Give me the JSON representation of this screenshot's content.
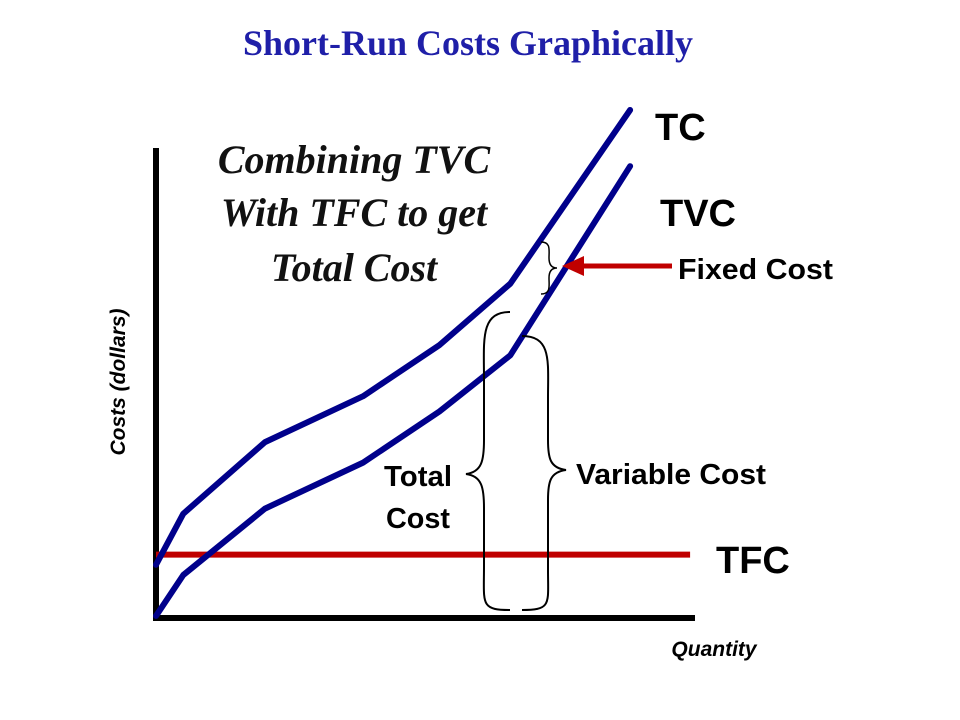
{
  "chart_data": {
    "type": "line",
    "title": "Short-Run Costs Graphically",
    "subtitle_lines": [
      "Combining TVC",
      "With TFC to get",
      "Total Cost"
    ],
    "xlabel": "Quantity",
    "ylabel": "Costs (dollars)",
    "series": [
      {
        "name": "TC",
        "color": "#00008b",
        "points": [
          [
            0,
            1.1
          ],
          [
            0.5,
            2.1
          ],
          [
            2.0,
            3.5
          ],
          [
            3.8,
            4.4
          ],
          [
            5.2,
            5.4
          ],
          [
            6.5,
            6.6
          ],
          [
            8.7,
            10.0
          ]
        ]
      },
      {
        "name": "TVC",
        "color": "#00008b",
        "points": [
          [
            0,
            0.1
          ],
          [
            0.5,
            0.9
          ],
          [
            2.0,
            2.2
          ],
          [
            3.8,
            3.1
          ],
          [
            5.2,
            4.1
          ],
          [
            6.5,
            5.2
          ],
          [
            8.7,
            8.9
          ]
        ]
      },
      {
        "name": "TFC",
        "color": "#c00000",
        "points": [
          [
            0,
            1.3
          ],
          [
            9.8,
            1.3
          ]
        ]
      }
    ],
    "annotations": {
      "fixed_cost": "Fixed Cost",
      "variable_cost": "Variable Cost",
      "total_cost_line1": "Total",
      "total_cost_line2": "Cost"
    },
    "xlim": [
      0,
      10
    ],
    "ylim": [
      0,
      10
    ]
  }
}
